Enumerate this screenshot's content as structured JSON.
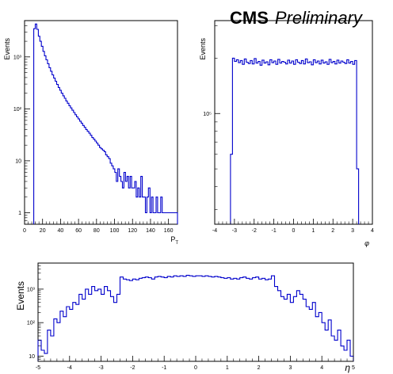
{
  "header": {
    "experiment": "CMS",
    "status": "Preliminary"
  },
  "chart_data": [
    {
      "type": "histogram",
      "title": "",
      "xlabel": "P",
      "xlabel_sub": "T",
      "ylabel": "Events",
      "xlim": [
        0,
        170
      ],
      "ylim": [
        0.6,
        5000
      ],
      "yscale": "log",
      "xticks": [
        0,
        20,
        40,
        60,
        80,
        100,
        120,
        140,
        160
      ],
      "xtick_labels": [
        "0",
        "20",
        "40",
        "60",
        "80",
        "100",
        "120",
        "140",
        "160"
      ],
      "yticks": [
        1,
        10,
        100,
        1000
      ],
      "ytick_labels": [
        "1",
        "10",
        "10²",
        "10³"
      ],
      "bin_width": 1.7,
      "x_start": 10.2,
      "values": [
        3500,
        4300,
        3400,
        2500,
        2000,
        1600,
        1280,
        1050,
        880,
        740,
        620,
        530,
        450,
        390,
        340,
        295,
        258,
        228,
        200,
        178,
        160,
        142,
        128,
        115,
        104,
        94,
        85,
        77,
        70,
        64,
        58,
        53,
        48,
        44,
        40,
        37,
        34,
        31,
        28,
        26,
        24,
        22,
        20,
        18,
        17,
        16,
        15,
        13,
        12,
        11,
        9,
        8,
        7,
        6,
        4,
        7,
        5,
        4,
        3,
        6,
        4,
        5,
        3,
        5,
        3,
        3,
        4,
        2,
        3,
        2,
        5,
        2,
        2,
        1,
        2,
        3,
        1,
        2,
        1,
        1,
        2,
        1,
        1,
        2,
        1,
        1,
        1,
        1,
        1,
        1,
        1,
        1,
        1,
        1
      ]
    },
    {
      "type": "histogram",
      "title": "",
      "xlabel": "φ",
      "ylabel": "Events",
      "xlim": [
        -4,
        4
      ],
      "ylim": [
        25000,
        320000
      ],
      "yscale": "log",
      "xticks": [
        -4,
        -3,
        -2,
        -1,
        0,
        1,
        2,
        3,
        4
      ],
      "xtick_labels": [
        "-4",
        "-3",
        "-2",
        "-1",
        "0",
        "1",
        "2",
        "3",
        "4"
      ],
      "yticks": [
        100000
      ],
      "ytick_labels": [
        "10⁵"
      ],
      "bin_width": 0.1,
      "x_start": -3.2,
      "values": [
        60000,
        200000,
        192000,
        196000,
        189000,
        194000,
        185000,
        198000,
        190000,
        187000,
        194000,
        186000,
        199000,
        188000,
        192000,
        183000,
        195000,
        188000,
        191000,
        184000,
        196000,
        189000,
        193000,
        185000,
        197000,
        188000,
        192000,
        190000,
        186000,
        195000,
        188000,
        193000,
        185000,
        196000,
        190000,
        187000,
        194000,
        186000,
        198000,
        189000,
        191000,
        184000,
        196000,
        189000,
        193000,
        186000,
        195000,
        188000,
        191000,
        185000,
        197000,
        189000,
        192000,
        186000,
        195000,
        188000,
        193000,
        190000,
        187000,
        196000,
        188000,
        192000,
        185000,
        194000,
        50000
      ]
    },
    {
      "type": "histogram",
      "title": "",
      "xlabel": "η",
      "ylabel": "Events",
      "xlim": [
        -5,
        5
      ],
      "ylim": [
        7,
        6000
      ],
      "yscale": "log",
      "xticks": [
        -5,
        -4,
        -3,
        -2,
        -1,
        0,
        1,
        2,
        3,
        4,
        5
      ],
      "xtick_labels": [
        "-5",
        "-4",
        "-3",
        "-2",
        "-1",
        "0",
        "1",
        "2",
        "3",
        "4",
        "5"
      ],
      "yticks": [
        10,
        100,
        1000
      ],
      "ytick_labels": [
        "10",
        "10²",
        "10³"
      ],
      "bin_width": 0.1,
      "x_start": -5,
      "values": [
        30,
        15,
        12,
        60,
        40,
        130,
        100,
        220,
        150,
        300,
        250,
        400,
        350,
        700,
        500,
        1000,
        700,
        1200,
        900,
        1000,
        700,
        1200,
        900,
        600,
        400,
        700,
        2300,
        2000,
        1900,
        1800,
        2000,
        1900,
        2100,
        2200,
        2300,
        2200,
        2000,
        2300,
        2400,
        2300,
        2200,
        2400,
        2300,
        2500,
        2400,
        2500,
        2400,
        2600,
        2500,
        2400,
        2500,
        2500,
        2400,
        2500,
        2400,
        2300,
        2400,
        2300,
        2200,
        2100,
        2200,
        2000,
        2100,
        2000,
        2200,
        2300,
        2100,
        2000,
        2200,
        2300,
        2000,
        2100,
        1900,
        2000,
        2500,
        1200,
        900,
        600,
        500,
        700,
        400,
        600,
        900,
        700,
        500,
        300,
        250,
        400,
        150,
        200,
        100,
        60,
        120,
        40,
        30,
        60,
        20,
        15,
        30,
        10
      ]
    }
  ]
}
